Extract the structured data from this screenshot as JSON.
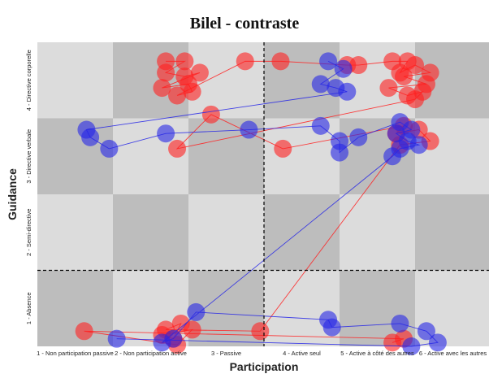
{
  "chart_data": {
    "type": "scatter",
    "title": "Bilel - contraste",
    "xlabel": "Participation",
    "ylabel": "Guidance",
    "x_categories": [
      "1 - Non participation passive",
      "2 - Non participation active",
      "3 - Passive",
      "4 - Active seul",
      "5 - Active à côté des autres",
      "6 - Active avec les autres"
    ],
    "y_categories": [
      "1 - Absence",
      "2 - Semi-directive",
      "3 - Directive verbale",
      "4 - Directive corporelle"
    ],
    "xlim": [
      0.5,
      6.5
    ],
    "ylim": [
      0.5,
      4.5
    ],
    "grid": true,
    "reference_lines": {
      "x": 3.5,
      "y": 1.5
    },
    "colors": {
      "red": "#ff2020",
      "blue": "#2626e6",
      "shade_light": "#dcdcdc",
      "shade_mid": "#cfcfcf",
      "shade_dark": "#bdbdbd"
    },
    "series": [
      {
        "color": "red",
        "x": [
          2.2,
          2.45,
          2.2,
          2.45,
          2.65,
          2.15,
          2.5,
          2.55,
          2.35,
          3.25,
          3.72,
          4.6,
          4.75,
          5.2,
          5.4,
          5.3,
          5.5,
          5.7,
          5.35,
          5.65,
          5.15,
          5.4,
          5.6,
          5.5,
          2.35,
          2.8,
          3.75,
          5.35,
          5.25,
          5.55,
          5.7,
          5.3,
          3.45,
          2.2,
          2.4,
          2.3,
          2.15,
          2.55,
          2.35,
          1.12,
          5.35,
          5.2
        ],
        "y": [
          4.25,
          4.25,
          4.1,
          4.05,
          4.1,
          3.9,
          3.95,
          3.85,
          3.8,
          4.25,
          4.25,
          4.2,
          4.2,
          4.25,
          4.25,
          4.1,
          4.2,
          4.1,
          4.05,
          3.95,
          3.9,
          3.8,
          3.85,
          3.75,
          3.1,
          3.55,
          3.1,
          3.4,
          3.3,
          3.35,
          3.2,
          3.15,
          0.7,
          0.72,
          0.8,
          0.6,
          0.65,
          0.72,
          0.52,
          0.7,
          0.6,
          0.55
        ]
      },
      {
        "color": "blue",
        "x": [
          4.35,
          4.55,
          4.25,
          4.45,
          4.6,
          1.15,
          1.2,
          1.45,
          2.2,
          3.3,
          4.25,
          4.5,
          4.5,
          4.75,
          5.3,
          5.45,
          5.25,
          5.4,
          5.55,
          5.3,
          5.2,
          2.15,
          2.3,
          2.6,
          4.35,
          4.4,
          5.3,
          5.65,
          5.8,
          5.45,
          1.55
        ],
        "y": [
          4.25,
          4.15,
          3.95,
          3.9,
          3.85,
          3.35,
          3.25,
          3.1,
          3.3,
          3.35,
          3.4,
          3.2,
          3.05,
          3.25,
          3.45,
          3.35,
          3.3,
          3.2,
          3.15,
          3.1,
          3.0,
          0.55,
          0.6,
          0.95,
          0.85,
          0.75,
          0.8,
          0.7,
          0.55,
          0.5,
          0.6
        ]
      }
    ]
  }
}
